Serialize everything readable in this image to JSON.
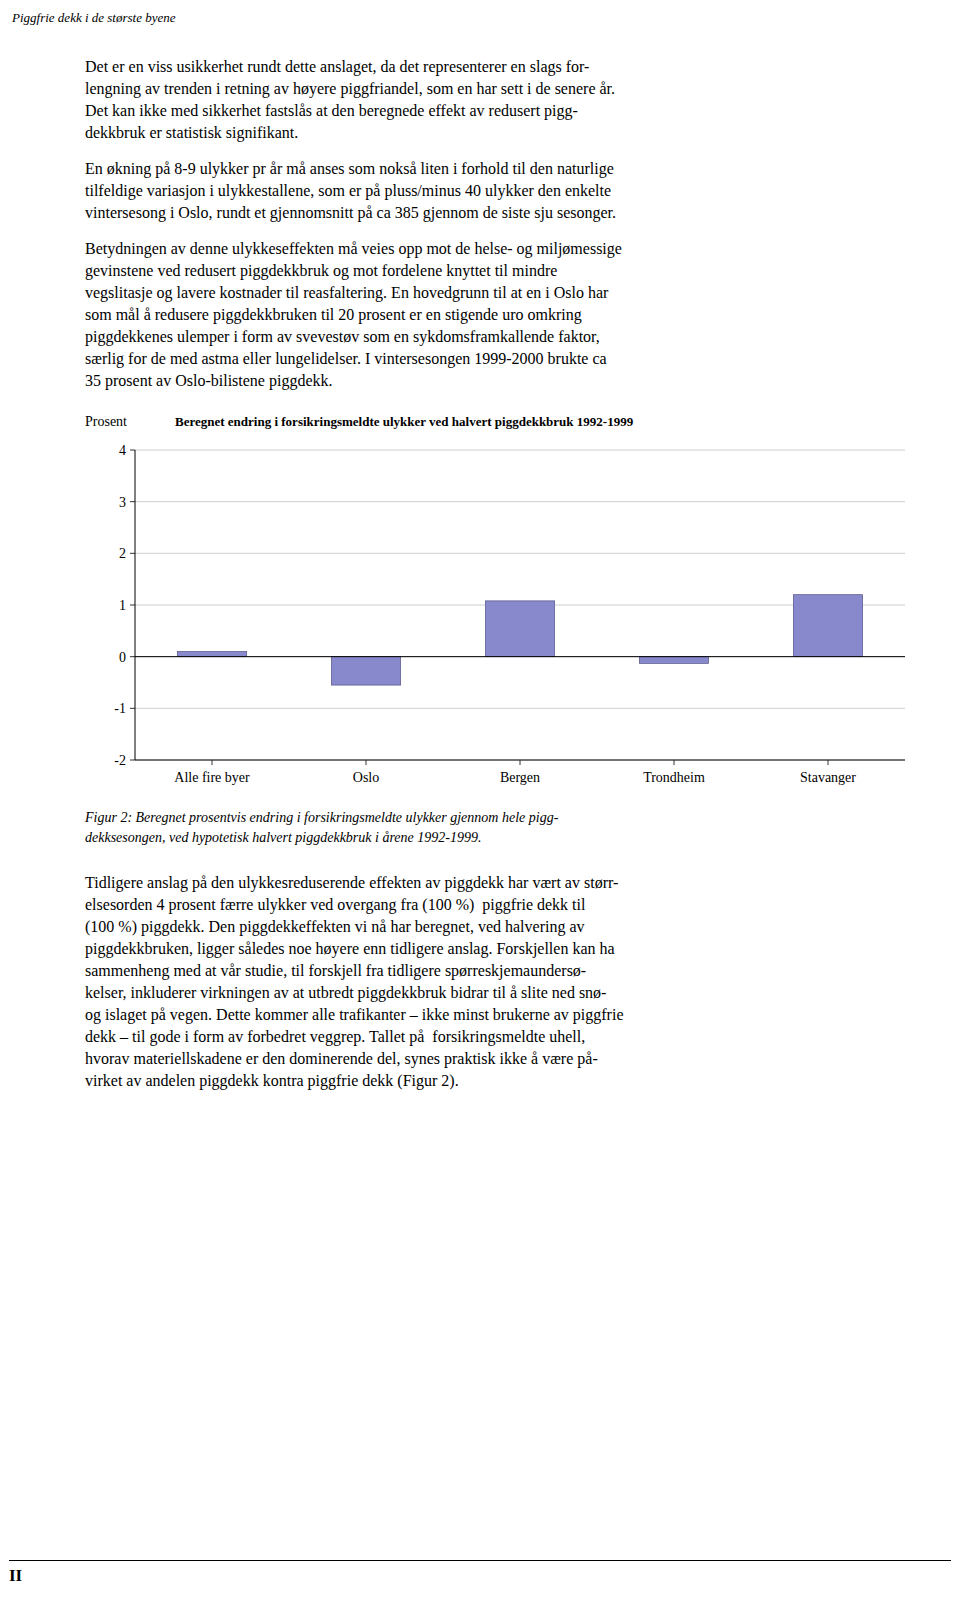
{
  "page_title": "Piggfrie dekk i de største byene",
  "paragraphs": [
    [
      "Det er en viss usikkerhet rundt dette anslaget, da det representerer en slags for-",
      "lengning av trenden i retning av høyere piggfriandel, som en har sett i de senere år.",
      "Det kan ikke med sikkerhet fastslås at den beregnede effekt av redusert pigg-",
      "dekkbruk er statistisk signifikant."
    ],
    [
      "En økning på 8-9 ulykker pr år må anses som nokså liten i forhold til den naturlige",
      "tilfeldige variasjon i ulykkestallene, som er på pluss/minus 40 ulykker den enkelte",
      "vintersesong i Oslo, rundt et gjennomsnitt på ca 385 gjennom de siste sju sesonger."
    ],
    [
      "Betydningen av denne ulykkeseffekten må veies opp mot de helse- og miljømessige",
      "gevinstene ved redusert piggdekkbruk og mot fordelene knyttet til mindre",
      "vegslitasje og lavere kostnader til reasfaltering. En hovedgrunn til at en i Oslo har",
      "som mål å redusere piggdekkbruken til 20 prosent er en stigende uro omkring",
      "piggdekkenes ulemper i form av svevestøv som en sykdomsframkallende faktor,",
      "særlig for de med astma eller lungelidelser. I vintersesongen 1999-2000 brukte ca",
      "35 prosent av Oslo-bilistene piggdekk."
    ]
  ],
  "chart_data": {
    "type": "bar",
    "title": "Beregnet endring i forsikringsmeldte ulykker ved halvert piggdekkbruk 1992-1999",
    "y_label": "Prosent",
    "categories": [
      "Alle fire byer",
      "Oslo",
      "Bergen",
      "Trondheim",
      "Stavanger"
    ],
    "values": [
      0.1,
      -0.55,
      1.08,
      -0.13,
      1.2
    ],
    "color": "#8888CC",
    "ylim": [
      -2,
      4
    ],
    "yticks": [
      -2,
      -1,
      0,
      1,
      2,
      3,
      4
    ],
    "grid": true
  },
  "caption": [
    "Figur 2: Beregnet prosentvis endring i forsikringsmeldte ulykker gjennom hele pigg-",
    "dekksesongen, ved hypotetisk halvert piggdekkbruk i årene 1992-1999."
  ],
  "closing_paragraph": [
    "Tidligere anslag på den ulykkesreduserende effekten av piggdekk har vært av størr-",
    "elsesorden 4 prosent færre ulykker ved overgang fra (100 %)  piggfrie dekk til",
    "(100 %) piggdekk. Den piggdekkeffekten vi nå har beregnet, ved halvering av",
    "piggdekkbruken, ligger således noe høyere enn tidligere anslag. Forskjellen kan ha",
    "sammenheng med at vår studie, til forskjell fra tidligere spørreskjemaundersø-",
    "kelser, inkluderer virkningen av at utbredt piggdekkbruk bidrar til å slite ned snø-",
    "og islaget på vegen. Dette kommer alle trafikanter – ikke minst brukerne av piggfrie",
    "dekk – til gode i form av forbedret veggrep. Tallet på  forsikringsmeldte uhell,",
    "hvorav materiellskadene er den dominerende del, synes praktisk ikke å være på-",
    "virket av andelen piggdekk kontra piggfrie dekk (Figur 2)."
  ],
  "page_number": "II"
}
